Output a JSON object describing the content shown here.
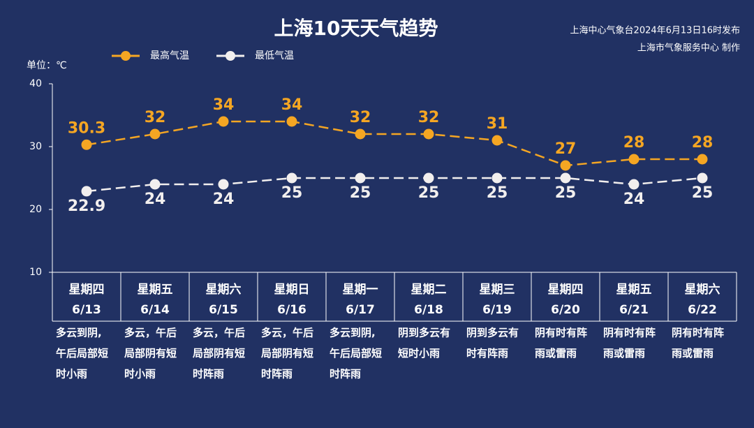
{
  "chart_data": {
    "type": "line",
    "title": "上海10天天气趋势",
    "notes": [
      "上海中心气象台2024年6月13日16时发布",
      "上海市气象服务中心 制作"
    ],
    "unit_label": "单位：℃",
    "weekdays": [
      "星期四",
      "星期五",
      "星期六",
      "星期日",
      "星期一",
      "星期二",
      "星期三",
      "星期四",
      "星期五",
      "星期六"
    ],
    "categories": [
      "6/13",
      "6/14",
      "6/15",
      "6/16",
      "6/17",
      "6/18",
      "6/19",
      "6/20",
      "6/21",
      "6/22"
    ],
    "weather": [
      [
        "多云到阴,",
        "午后局部短",
        "时小雨"
      ],
      [
        "多云，午后",
        "局部阴有短",
        "时小雨"
      ],
      [
        "多云，午后",
        "局部阴有短",
        "时阵雨"
      ],
      [
        "多云，午后",
        "局部阴有短",
        "时阵雨"
      ],
      [
        "多云到阴,",
        "午后局部短",
        "时阵雨"
      ],
      [
        "阴到多云有",
        "短时小雨"
      ],
      [
        "阴到多云有",
        "时有阵雨"
      ],
      [
        "阴有时有阵",
        "雨或雷雨"
      ],
      [
        "阴有时有阵",
        "雨或雷雨"
      ],
      [
        "阴有时有阵",
        "雨或雷雨"
      ]
    ],
    "series": [
      {
        "name": "最高气温",
        "color": "#f5a623",
        "values": [
          30.3,
          32,
          34,
          34,
          32,
          32,
          31,
          27,
          28,
          28
        ]
      },
      {
        "name": "最低气温",
        "color": "#f2efee",
        "values": [
          22.9,
          24,
          24,
          25,
          25,
          25,
          25,
          25,
          24,
          25
        ]
      }
    ],
    "ylim": [
      10,
      40
    ],
    "yticks": [
      10,
      20,
      30,
      40
    ]
  }
}
